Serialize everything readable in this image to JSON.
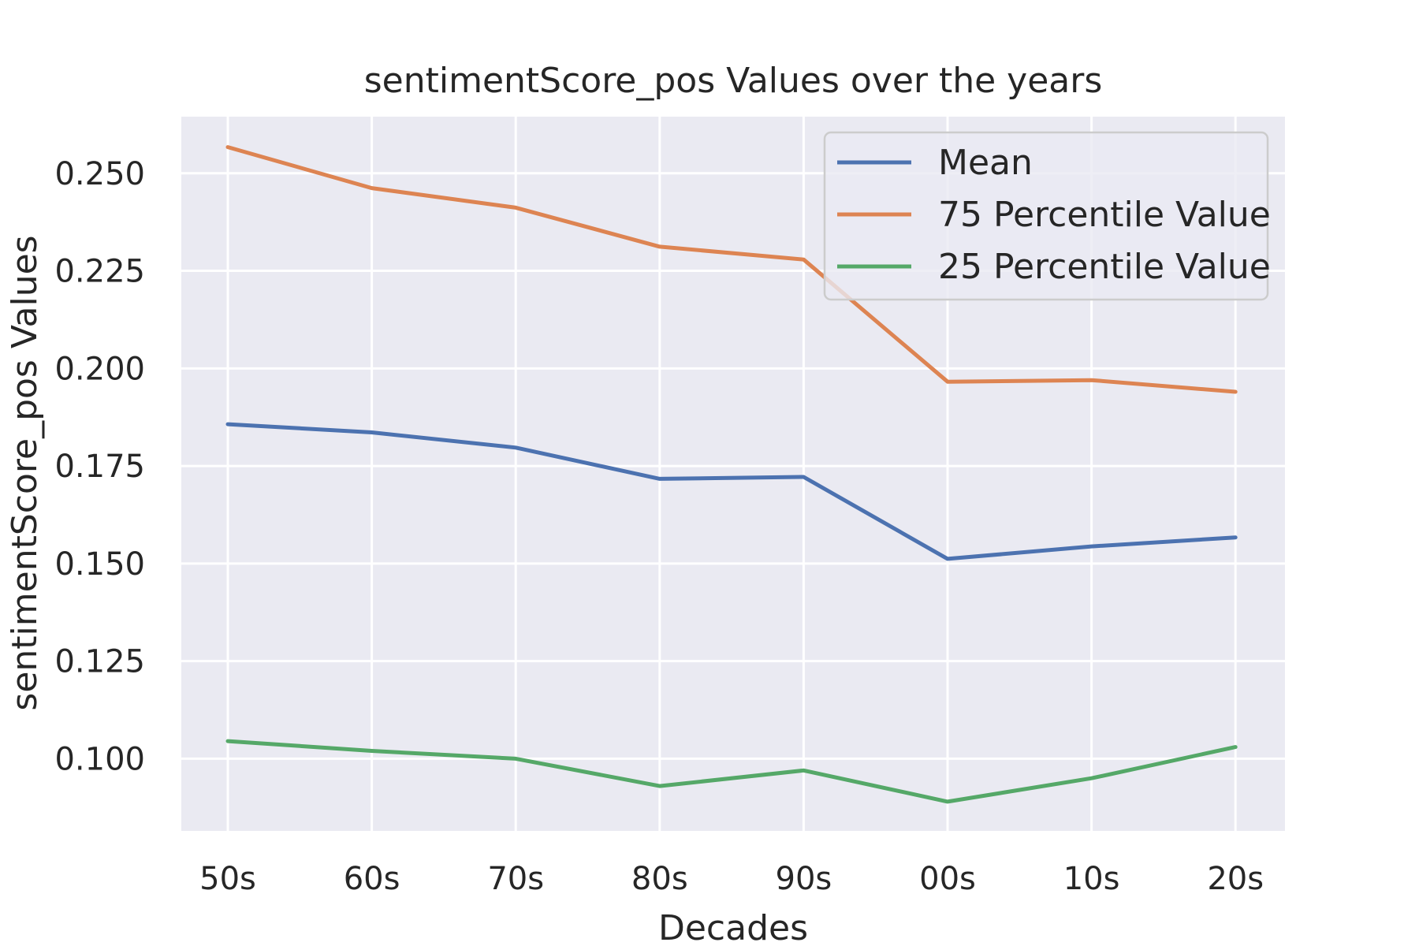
{
  "chart_data": {
    "type": "line",
    "title": "sentimentScore_pos Values over the years",
    "xlabel": "Decades",
    "ylabel": "sentimentScore_pos Values",
    "categories": [
      "50s",
      "60s",
      "70s",
      "80s",
      "90s",
      "00s",
      "10s",
      "20s"
    ],
    "yticks": [
      "0.100",
      "0.125",
      "0.150",
      "0.175",
      "0.200",
      "0.225",
      "0.250"
    ],
    "ytick_values": [
      0.1,
      0.125,
      0.15,
      0.175,
      0.2,
      0.225,
      0.25
    ],
    "ylim": [
      0.0815,
      0.2645
    ],
    "grid": true,
    "legend_position": "upper right",
    "series": [
      {
        "name": "Mean",
        "color": "#4c72b0",
        "values": [
          0.1857,
          0.1836,
          0.1797,
          0.1717,
          0.1722,
          0.1512,
          0.1544,
          0.1567
        ]
      },
      {
        "name": "75 Percentile Value",
        "color": "#dd8452",
        "values": [
          0.2567,
          0.2462,
          0.2412,
          0.2312,
          0.2279,
          0.1966,
          0.197,
          0.194
        ]
      },
      {
        "name": "25 Percentile Value",
        "color": "#55a868",
        "values": [
          0.1045,
          0.102,
          0.1,
          0.093,
          0.097,
          0.089,
          0.095,
          0.103
        ]
      }
    ]
  },
  "colors": {
    "plot_background": "#eaeaf2",
    "grid": "#ffffff",
    "text": "#262626"
  }
}
